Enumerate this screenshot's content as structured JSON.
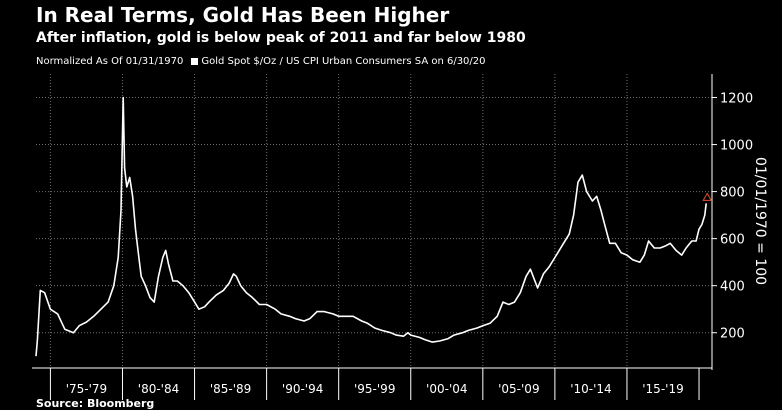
{
  "header": {
    "title": "In Real Terms, Gold Has Been Higher",
    "subtitle": "After inflation, gold is below peak of 2011 and far below 1980"
  },
  "legend": {
    "note": "Normalized As Of 01/31/1970",
    "series_label": "Gold Spot $/Oz / US CPI Urban Consumers SA on 6/30/20"
  },
  "source": "Source: Bloomberg",
  "colors": {
    "background": "#000000",
    "line": "#ffffff",
    "grid": "#6e6e6e",
    "marker": "#e05030"
  },
  "chart_data": {
    "type": "line",
    "ylabel": "01/01/1970 = 100",
    "y_axis_position": "right",
    "ylim": [
      50,
      1300
    ],
    "yticks": [
      200,
      400,
      600,
      800,
      1000,
      1200
    ],
    "xlim": [
      1974.0,
      2020.9
    ],
    "x_period_labels": [
      "'75-'79",
      "'80-'84",
      "'85-'89",
      "'90-'94",
      "'95-'99",
      "'00-'04",
      "'05-'09",
      "'10-'14",
      "'15-'19"
    ],
    "grid": true,
    "last_value_marker": "triangle",
    "series": [
      {
        "x": [
          1974.0,
          1974.1,
          1974.3,
          1974.6,
          1975.0,
          1975.5,
          1976.0,
          1976.6,
          1977.0,
          1977.5,
          1978.0,
          1978.5,
          1979.0,
          1979.4,
          1979.7,
          1979.9,
          1980.05,
          1980.15,
          1980.3,
          1980.5,
          1980.7,
          1980.9,
          1981.1,
          1981.3,
          1981.6,
          1981.9,
          1982.2,
          1982.5,
          1982.8,
          1983.0,
          1983.2,
          1983.5,
          1983.8,
          1984.2,
          1984.6,
          1985.0,
          1985.3,
          1985.7,
          1986.0,
          1986.5,
          1987.0,
          1987.4,
          1987.7,
          1987.9,
          1988.2,
          1988.6,
          1989.0,
          1989.5,
          1990.0,
          1990.6,
          1991.0,
          1991.6,
          1992.0,
          1992.6,
          1993.0,
          1993.5,
          1994.0,
          1994.6,
          1995.0,
          1995.6,
          1996.0,
          1996.6,
          1997.0,
          1997.5,
          1998.0,
          1998.6,
          1999.0,
          1999.5,
          1999.8,
          2000.0,
          2000.6,
          2001.0,
          2001.5,
          2002.0,
          2002.6,
          2003.0,
          2003.6,
          2004.0,
          2004.6,
          2005.0,
          2005.5,
          2006.0,
          2006.4,
          2006.8,
          2007.2,
          2007.6,
          2008.0,
          2008.3,
          2008.8,
          2009.2,
          2009.6,
          2010.0,
          2010.5,
          2011.0,
          2011.3,
          2011.6,
          2011.9,
          2012.2,
          2012.6,
          2012.9,
          2013.2,
          2013.5,
          2013.8,
          2014.2,
          2014.6,
          2015.0,
          2015.4,
          2015.9,
          2016.2,
          2016.5,
          2016.9,
          2017.3,
          2017.7,
          2018.0,
          2018.4,
          2018.8,
          2019.1,
          2019.5,
          2019.8,
          2020.0,
          2020.2,
          2020.4,
          2020.5
        ],
        "y": [
          100,
          170,
          380,
          370,
          300,
          280,
          215,
          200,
          230,
          245,
          270,
          300,
          330,
          400,
          520,
          720,
          1200,
          900,
          820,
          860,
          780,
          640,
          540,
          440,
          400,
          350,
          330,
          440,
          520,
          550,
          490,
          420,
          420,
          400,
          370,
          330,
          300,
          310,
          330,
          360,
          380,
          410,
          450,
          440,
          400,
          370,
          350,
          320,
          320,
          300,
          280,
          270,
          260,
          250,
          260,
          290,
          290,
          280,
          270,
          270,
          270,
          250,
          240,
          220,
          210,
          200,
          190,
          185,
          200,
          190,
          180,
          170,
          160,
          165,
          175,
          190,
          200,
          210,
          220,
          230,
          240,
          270,
          330,
          320,
          330,
          370,
          440,
          470,
          390,
          450,
          480,
          520,
          570,
          620,
          700,
          840,
          870,
          800,
          760,
          780,
          720,
          650,
          580,
          580,
          540,
          530,
          510,
          500,
          530,
          590,
          560,
          560,
          570,
          580,
          550,
          530,
          560,
          590,
          590,
          640,
          660,
          700,
          750
        ]
      }
    ]
  }
}
